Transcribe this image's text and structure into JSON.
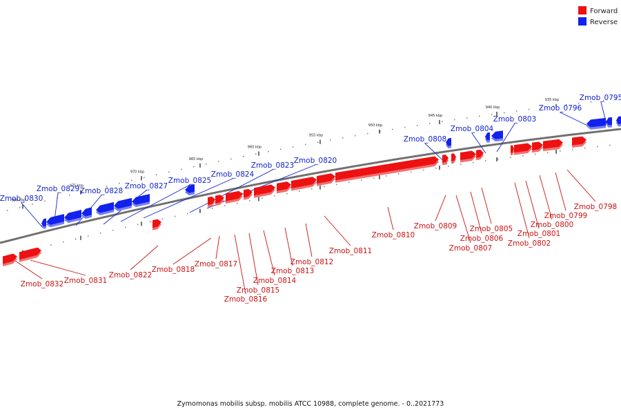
{
  "caption": "Zymomonas mobilis subsp. mobilis ATCC 10988, complete genome. - 0..2021773",
  "legend": {
    "items": [
      {
        "label": "Forward",
        "color": "#ee1111"
      },
      {
        "label": "Reverse",
        "color": "#1122ee"
      }
    ]
  },
  "colors": {
    "forward": "#ee1111",
    "forward_shadow": "#f07070",
    "reverse": "#1122ee",
    "reverse_shadow": "#7a80f0",
    "backbone": "#707070",
    "label_forward": "#cc1111",
    "label_reverse": "#1122cc"
  },
  "scale_labels": [
    "980 kbp",
    "975 kbp",
    "970 kbp",
    "965 kbp",
    "960 kbp",
    "955 kbp",
    "950 kbp",
    "945 kbp",
    "940 kbp",
    "935 kbp"
  ],
  "genes": [
    {
      "id": "Zmob_0795",
      "strand": "reverse"
    },
    {
      "id": "Zmob_0796",
      "strand": "reverse"
    },
    {
      "id": "Zmob_0798",
      "strand": "forward"
    },
    {
      "id": "Zmob_0799",
      "strand": "forward"
    },
    {
      "id": "Zmob_0800",
      "strand": "forward"
    },
    {
      "id": "Zmob_0801",
      "strand": "forward"
    },
    {
      "id": "Zmob_0802",
      "strand": "forward"
    },
    {
      "id": "Zmob_0803",
      "strand": "reverse"
    },
    {
      "id": "Zmob_0804",
      "strand": "reverse"
    },
    {
      "id": "Zmob_0805",
      "strand": "forward"
    },
    {
      "id": "Zmob_0806",
      "strand": "forward"
    },
    {
      "id": "Zmob_0807",
      "strand": "forward"
    },
    {
      "id": "Zmob_0808",
      "strand": "reverse"
    },
    {
      "id": "Zmob_0809",
      "strand": "forward"
    },
    {
      "id": "Zmob_0810",
      "strand": "forward"
    },
    {
      "id": "Zmob_0811",
      "strand": "forward"
    },
    {
      "id": "Zmob_0812",
      "strand": "forward"
    },
    {
      "id": "Zmob_0813",
      "strand": "forward"
    },
    {
      "id": "Zmob_0814",
      "strand": "forward"
    },
    {
      "id": "Zmob_0815",
      "strand": "forward"
    },
    {
      "id": "Zmob_0816",
      "strand": "forward"
    },
    {
      "id": "Zmob_0817",
      "strand": "forward"
    },
    {
      "id": "Zmob_0818",
      "strand": "forward"
    },
    {
      "id": "Zmob_0820",
      "strand": "reverse"
    },
    {
      "id": "Zmob_0822",
      "strand": "forward"
    },
    {
      "id": "Zmob_0823",
      "strand": "reverse"
    },
    {
      "id": "Zmob_0824",
      "strand": "reverse"
    },
    {
      "id": "Zmob_0825",
      "strand": "reverse"
    },
    {
      "id": "Zmob_0827",
      "strand": "reverse"
    },
    {
      "id": "Zmob_0828",
      "strand": "reverse"
    },
    {
      "id": "Zmob_0829",
      "strand": "reverse"
    },
    {
      "id": "Zmob_0830",
      "strand": "reverse"
    },
    {
      "id": "Zmob_0831",
      "strand": "forward"
    },
    {
      "id": "Zmob_0832",
      "strand": "forward"
    }
  ]
}
